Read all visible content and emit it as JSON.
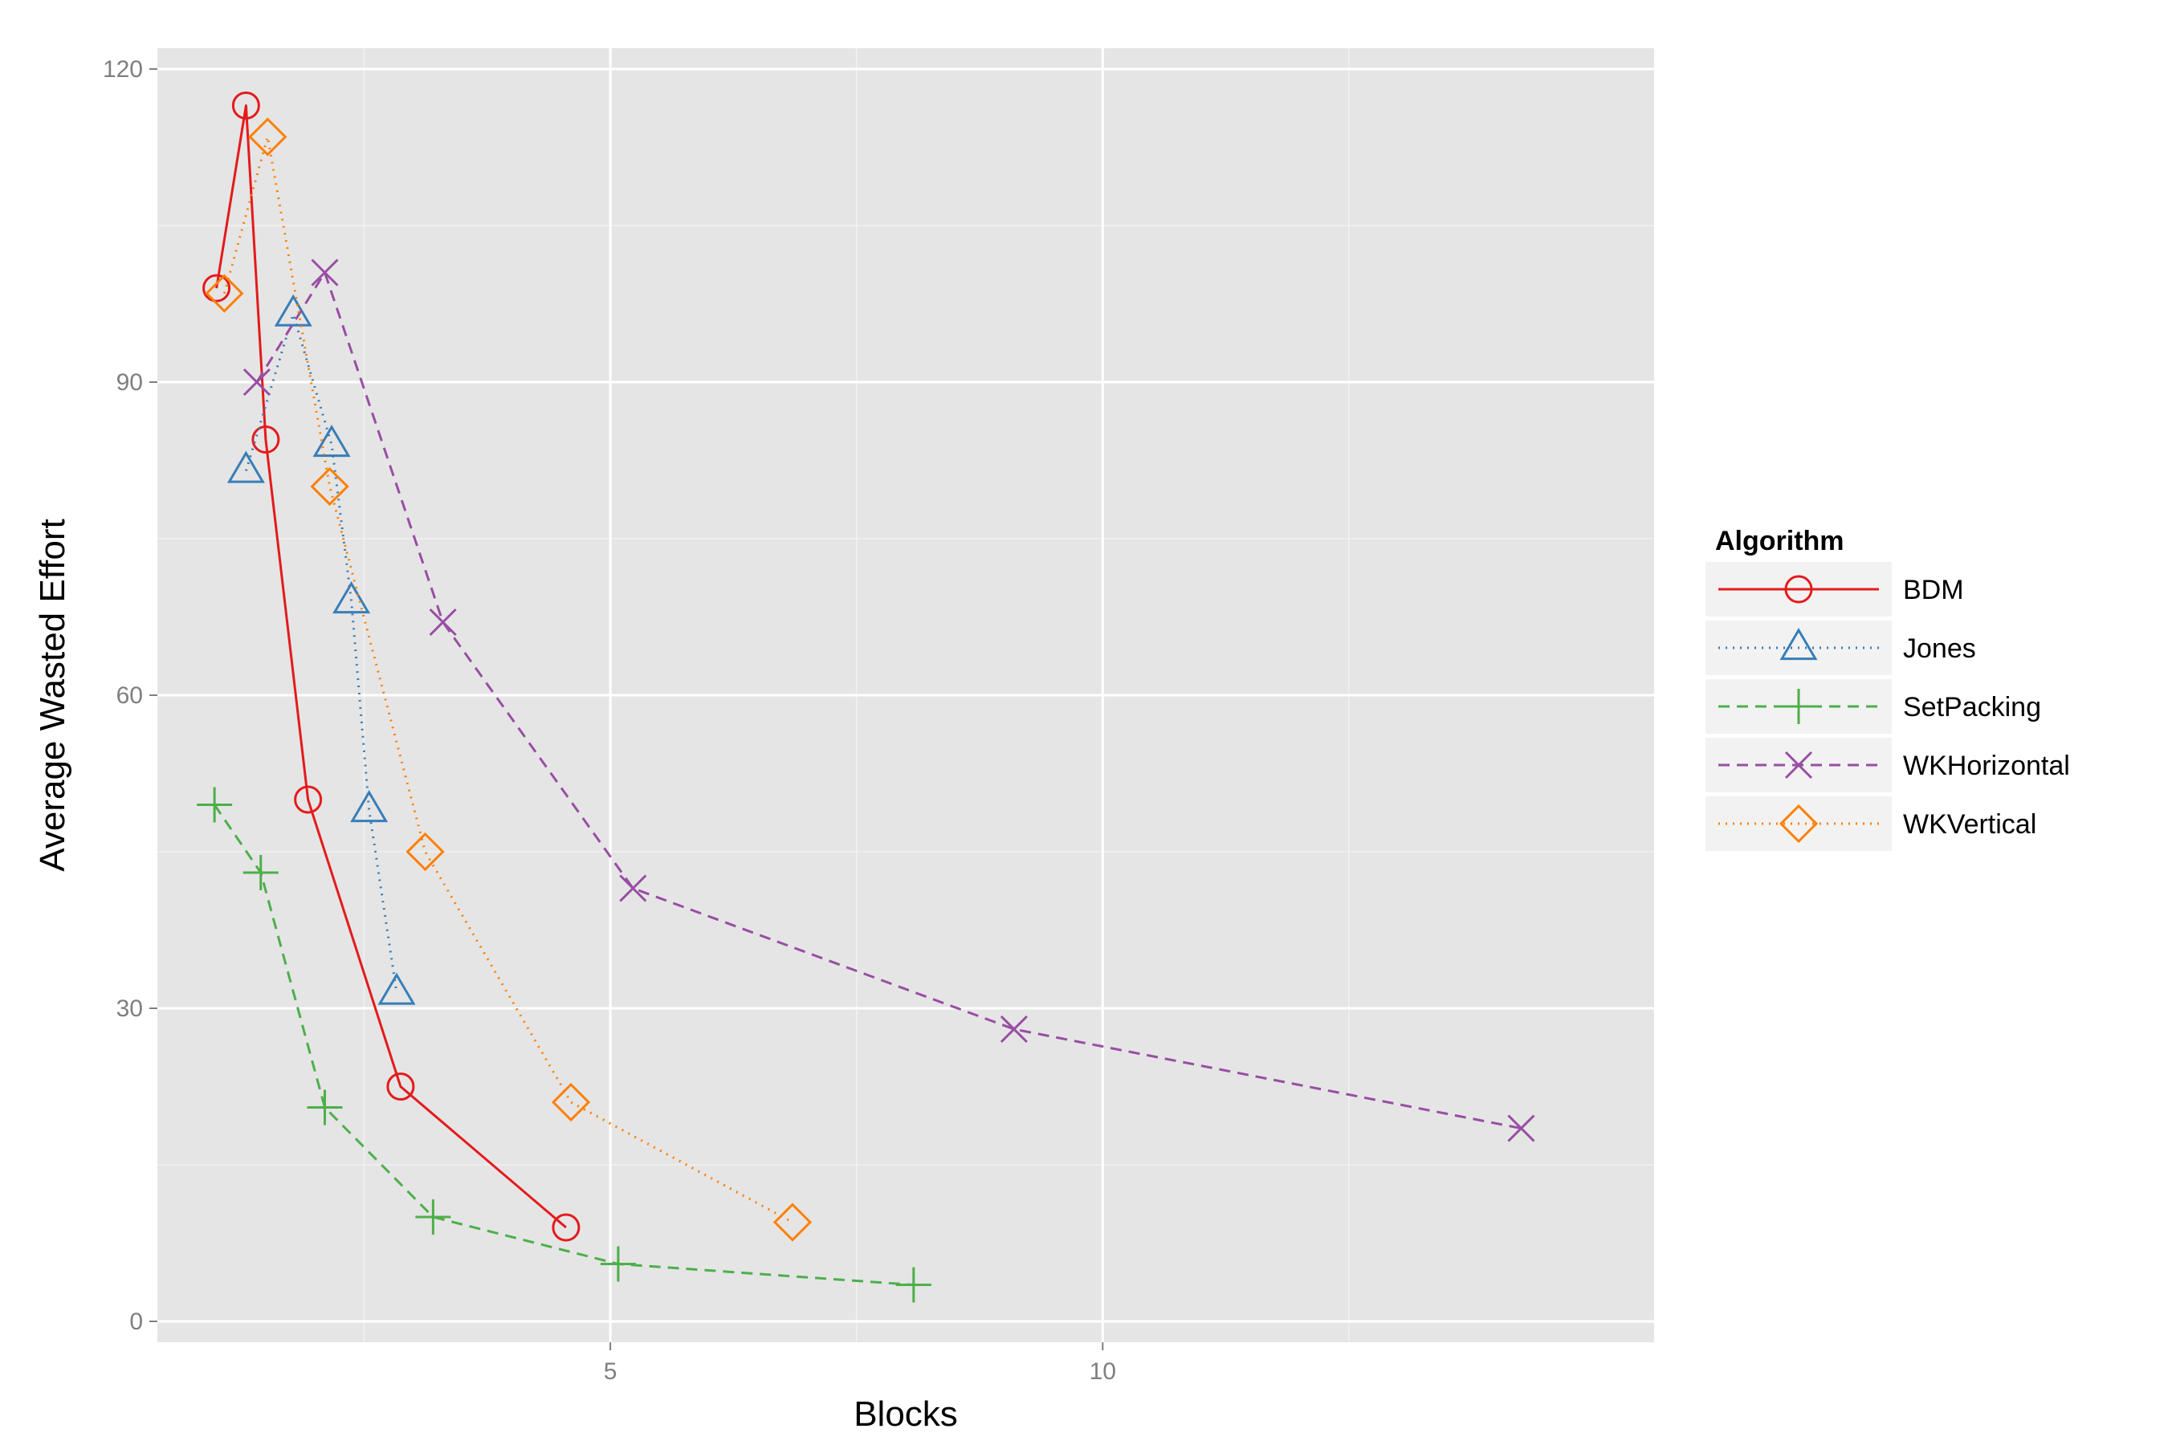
{
  "chart_data": {
    "type": "line",
    "title": "",
    "xlabel": "Blocks",
    "ylabel": "Average Wasted Effort",
    "xlim": [
      0.4,
      15.6
    ],
    "ylim": [
      -2,
      122
    ],
    "x_ticks": [
      5,
      10
    ],
    "x_tick_labels": [
      "5",
      "10"
    ],
    "y_ticks": [
      0,
      30,
      60,
      90,
      120
    ],
    "y_tick_labels": [
      "0",
      "30",
      "60",
      "90",
      "120"
    ],
    "grid": true,
    "legend": {
      "title": "Algorithm",
      "position": "right"
    },
    "series": [
      {
        "name": "BDM",
        "color": "#e41a1c",
        "dash": "solid",
        "shape": "circle",
        "x": [
          1.0,
          1.3,
          1.5,
          1.93,
          2.87,
          4.55
        ],
        "y": [
          99,
          116.5,
          84.5,
          50,
          22.5,
          9
        ]
      },
      {
        "name": "Jones",
        "color": "#377eb8",
        "dash": "dotted",
        "shape": "triangle",
        "x": [
          1.3,
          1.78,
          2.17,
          2.37,
          2.55,
          2.83
        ],
        "y": [
          81.5,
          96.5,
          84,
          69,
          49,
          31.5
        ]
      },
      {
        "name": "SetPacking",
        "color": "#4daf4a",
        "dash": "dashed",
        "shape": "plus",
        "x": [
          0.98,
          1.45,
          2.1,
          3.2,
          5.08,
          8.08
        ],
        "y": [
          49.5,
          43,
          20.5,
          10,
          5.5,
          3.5
        ]
      },
      {
        "name": "WKHorizontal",
        "color": "#984ea3",
        "dash": "dashed",
        "shape": "cross",
        "x": [
          1.41,
          2.1,
          3.3,
          5.23,
          9.1,
          14.25
        ],
        "y": [
          90,
          100.5,
          67,
          41.5,
          28,
          18.5
        ]
      },
      {
        "name": "WKVertical",
        "color": "#ff7f00",
        "dash": "dotted",
        "shape": "diamond",
        "x": [
          1.08,
          1.52,
          2.15,
          3.12,
          4.6,
          6.85
        ],
        "y": [
          98.5,
          113.5,
          80,
          45,
          21,
          9.5
        ]
      }
    ]
  }
}
